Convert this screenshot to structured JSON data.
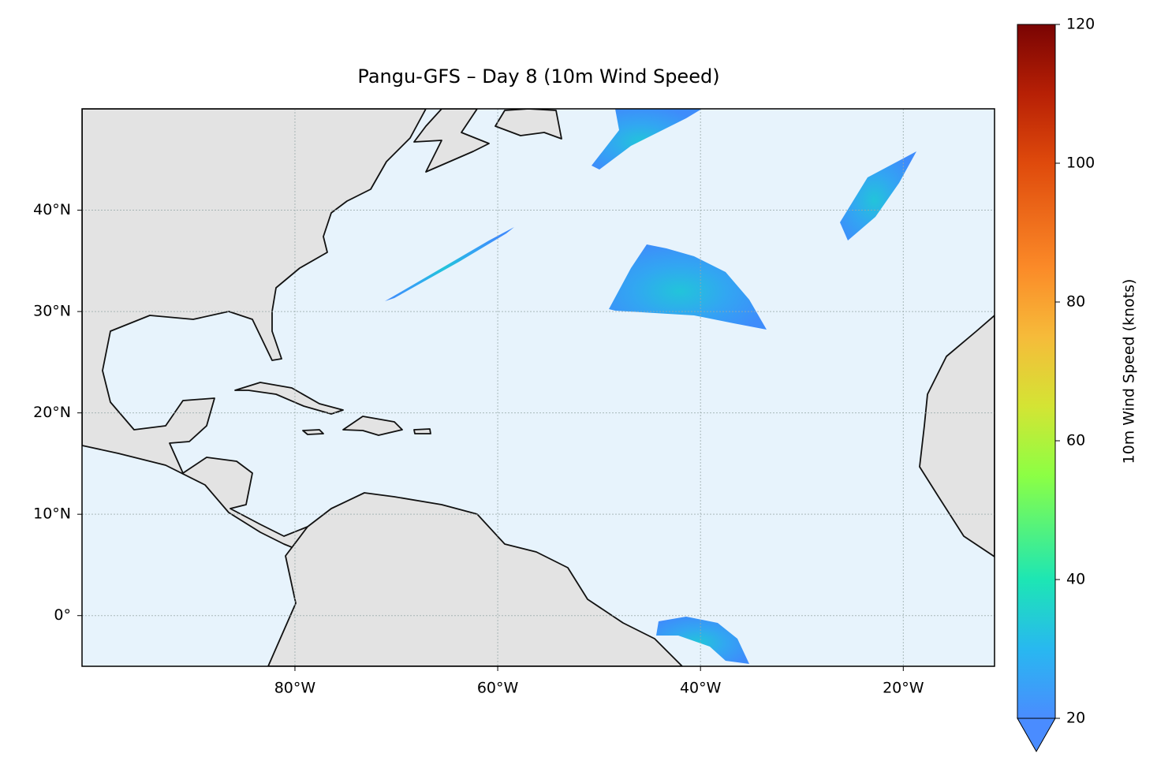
{
  "chart_data": {
    "type": "map",
    "title": "Pangu-GFS – Day 8 (10m Wind Speed)",
    "xlim": [
      -101,
      -11
    ],
    "ylim": [
      -5,
      50
    ],
    "xticks": [
      {
        "value": -80,
        "label": "80°W"
      },
      {
        "value": -60,
        "label": "60°W"
      },
      {
        "value": -40,
        "label": "40°W"
      },
      {
        "value": -20,
        "label": "20°W"
      }
    ],
    "yticks": [
      {
        "value": 0,
        "label": "0°"
      },
      {
        "value": 10,
        "label": "10°N"
      },
      {
        "value": 20,
        "label": "20°N"
      },
      {
        "value": 30,
        "label": "30°N"
      },
      {
        "value": 40,
        "label": "40°N"
      }
    ],
    "grid": true,
    "colorbar": {
      "label": "10m Wind Speed (knots)",
      "lim": [
        20,
        120
      ],
      "ticks": [
        20,
        40,
        60,
        80,
        100,
        120
      ],
      "extend": "min"
    }
  }
}
